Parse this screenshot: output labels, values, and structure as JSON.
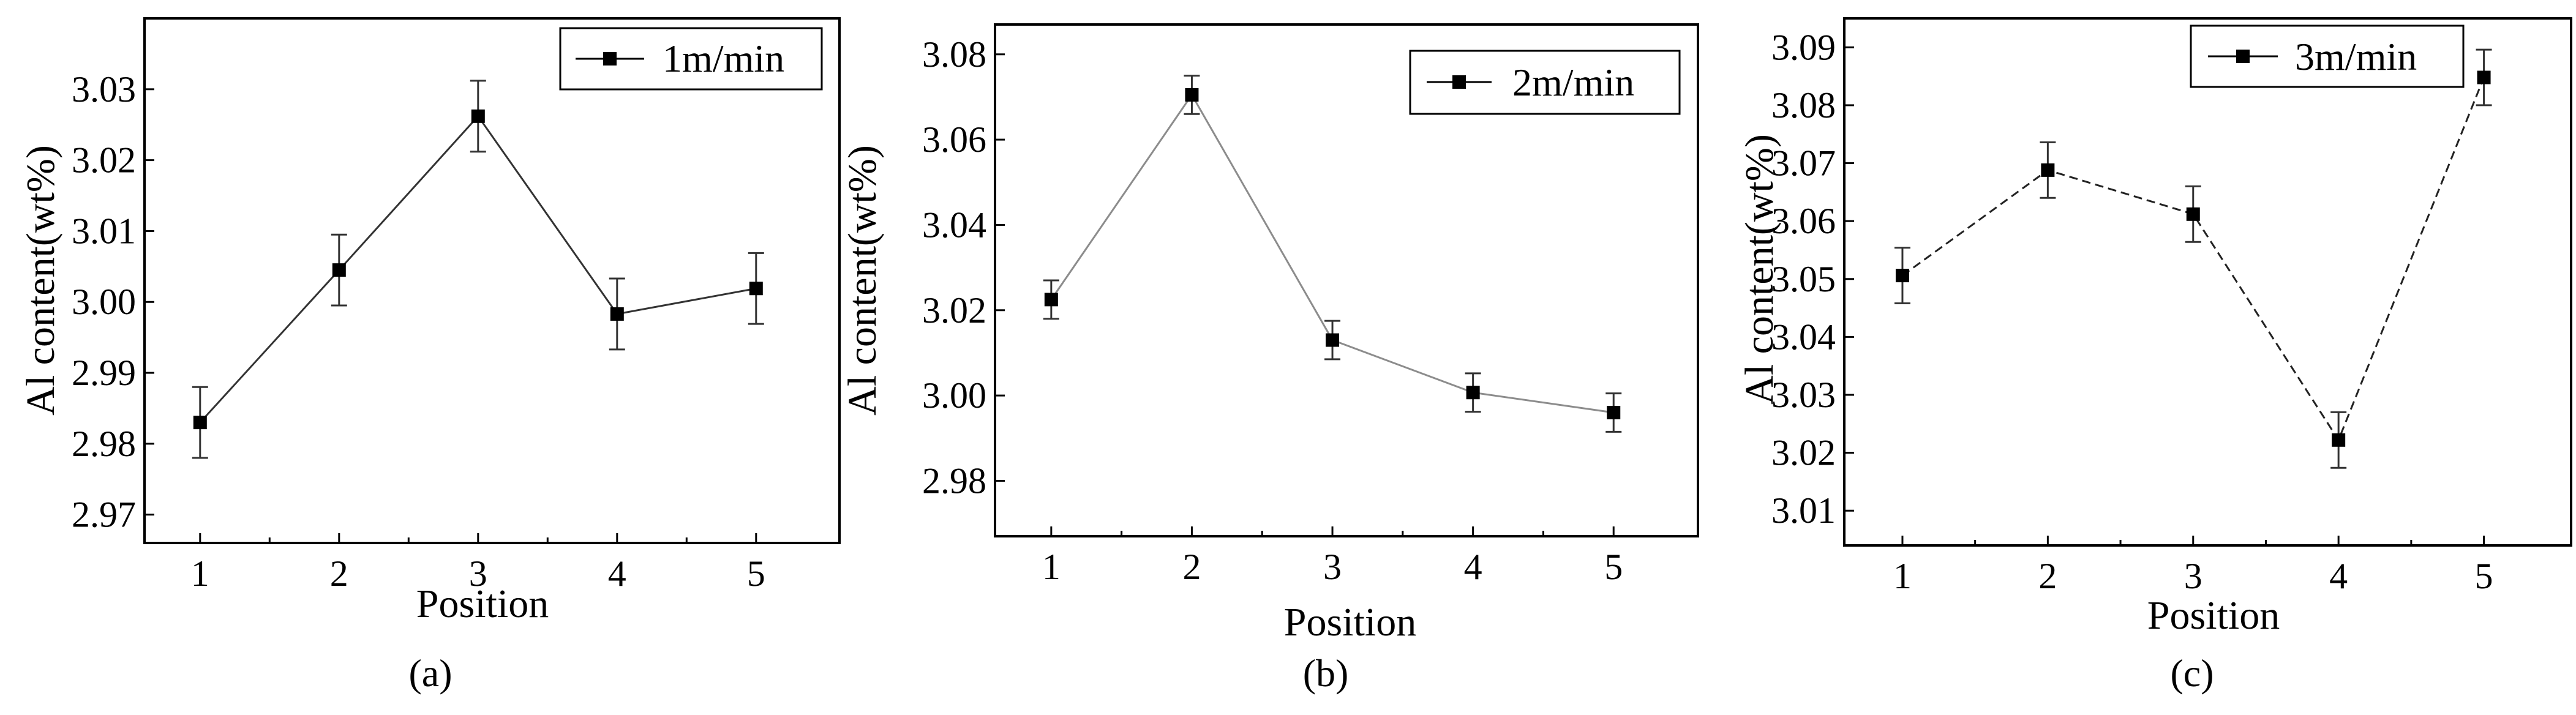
{
  "chart_data": [
    {
      "type": "line",
      "panel_label": "(a)",
      "xlabel": "Position",
      "ylabel": "Al content(wt%)",
      "x": [
        1,
        2,
        3,
        4,
        5
      ],
      "xticks": [
        "1",
        "2",
        "3",
        "4",
        "5"
      ],
      "xlim": [
        0.6,
        5.6
      ],
      "ylim": [
        2.966,
        3.04
      ],
      "yticks": [
        "2.97",
        "2.98",
        "2.99",
        "3.00",
        "3.01",
        "3.02",
        "3.03"
      ],
      "series": [
        {
          "name": "1m/min",
          "values": [
            2.983,
            3.0045,
            3.0262,
            2.9983,
            3.0019
          ],
          "errors": [
            0.005,
            0.005,
            0.005,
            0.005,
            0.005
          ],
          "color": "#333333"
        }
      ],
      "legend": "top-right"
    },
    {
      "type": "line",
      "panel_label": "(b)",
      "xlabel": "Position",
      "ylabel": "Al content(wt%)",
      "x": [
        1,
        2,
        3,
        4,
        5
      ],
      "xticks": [
        "1",
        "2",
        "3",
        "4",
        "5"
      ],
      "xlim": [
        0.6,
        5.6
      ],
      "ylim": [
        2.967,
        3.087
      ],
      "yticks": [
        "2.98",
        "3.00",
        "3.02",
        "3.04",
        "3.06",
        "3.08"
      ],
      "series": [
        {
          "name": "2m/min",
          "values": [
            3.0225,
            3.0705,
            3.013,
            3.0007,
            2.996
          ],
          "errors": [
            0.0045,
            0.0045,
            0.0045,
            0.0045,
            0.0045
          ],
          "color": "#8c8c8c"
        }
      ],
      "legend": "top-right"
    },
    {
      "type": "line",
      "panel_label": "(c)",
      "xlabel": "Position",
      "ylabel": "Al content(wt%)",
      "x": [
        1,
        2,
        3,
        4,
        5
      ],
      "xticks": [
        "1",
        "2",
        "3",
        "4",
        "5"
      ],
      "xlim": [
        0.6,
        5.6
      ],
      "ylim": [
        3.004,
        3.095
      ],
      "yticks": [
        "3.01",
        "3.02",
        "3.03",
        "3.04",
        "3.05",
        "3.06",
        "3.07",
        "3.08",
        "3.09"
      ],
      "series": [
        {
          "name": "3m/min",
          "values": [
            3.0506,
            3.0688,
            3.0612,
            3.0222,
            3.0848
          ],
          "errors": [
            0.0048,
            0.0048,
            0.0048,
            0.0048,
            0.0048
          ],
          "color": "#222222"
        }
      ],
      "legend": "top-right"
    }
  ]
}
